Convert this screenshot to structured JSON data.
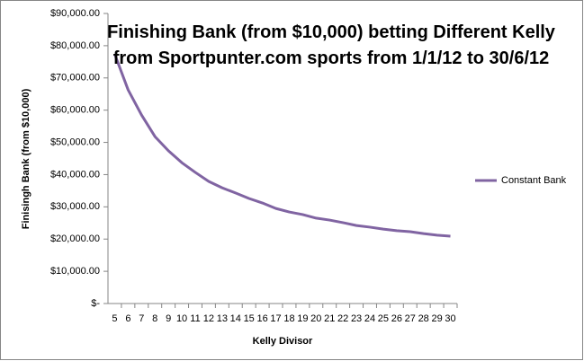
{
  "chart_data": {
    "type": "line",
    "title": "Finishing Bank (from $10,000) betting Different Kelly from Sportpunter.com sports from 1/1/12 to 30/6/12",
    "x_label": "Kelly Divisor",
    "y_label": "Finisingh Bank (from $10,000)",
    "categories": [
      "5",
      "6",
      "7",
      "8",
      "9",
      "10",
      "11",
      "12",
      "13",
      "14",
      "15",
      "16",
      "17",
      "18",
      "19",
      "20",
      "21",
      "22",
      "23",
      "24",
      "25",
      "26",
      "27",
      "28",
      "29",
      "30"
    ],
    "series": [
      {
        "name": "Constant Bank",
        "color": "#8064a2",
        "values": [
          77400,
          66300,
          58500,
          51800,
          47400,
          43700,
          40700,
          37900,
          35900,
          34300,
          32600,
          31200,
          29500,
          28400,
          27600,
          26500,
          25900,
          25100,
          24200,
          23700,
          23100,
          22600,
          22300,
          21700,
          21200,
          20900
        ]
      }
    ],
    "ylim": [
      0,
      90000
    ],
    "yticks": [
      {
        "value": 0,
        "label": "$-"
      },
      {
        "value": 10000,
        "label": "$10,000.00"
      },
      {
        "value": 20000,
        "label": "$20,000.00"
      },
      {
        "value": 30000,
        "label": "$30,000.00"
      },
      {
        "value": 40000,
        "label": "$40,000.00"
      },
      {
        "value": 50000,
        "label": "$50,000.00"
      },
      {
        "value": 60000,
        "label": "$60,000.00"
      },
      {
        "value": 70000,
        "label": "$70,000.00"
      },
      {
        "value": 80000,
        "label": "$80,000.00"
      },
      {
        "value": 90000,
        "label": "$90,000.00"
      }
    ],
    "grid": false,
    "legend": "right"
  }
}
